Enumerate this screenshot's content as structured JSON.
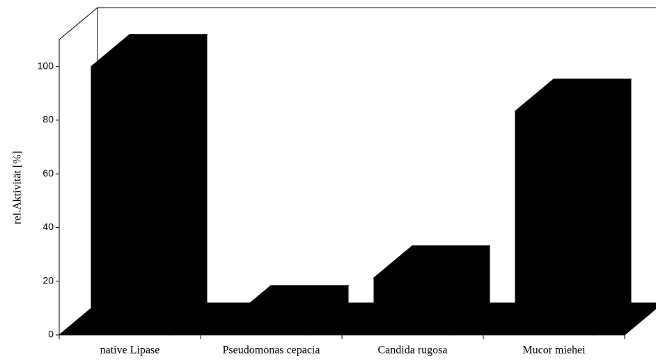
{
  "chart_data": {
    "type": "bar3d",
    "y_label": "rel.Aktivität [%]",
    "categories": [
      "native Lipase",
      "Pseudomonas cepacia",
      "Candida rugosa",
      "Mucor miehei"
    ],
    "values": [
      100,
      6.5,
      21.3,
      83.4
    ],
    "ylim": [
      0,
      110
    ],
    "yticks": [
      0,
      20,
      40,
      60,
      80,
      100
    ],
    "color": "#ffffff"
  }
}
